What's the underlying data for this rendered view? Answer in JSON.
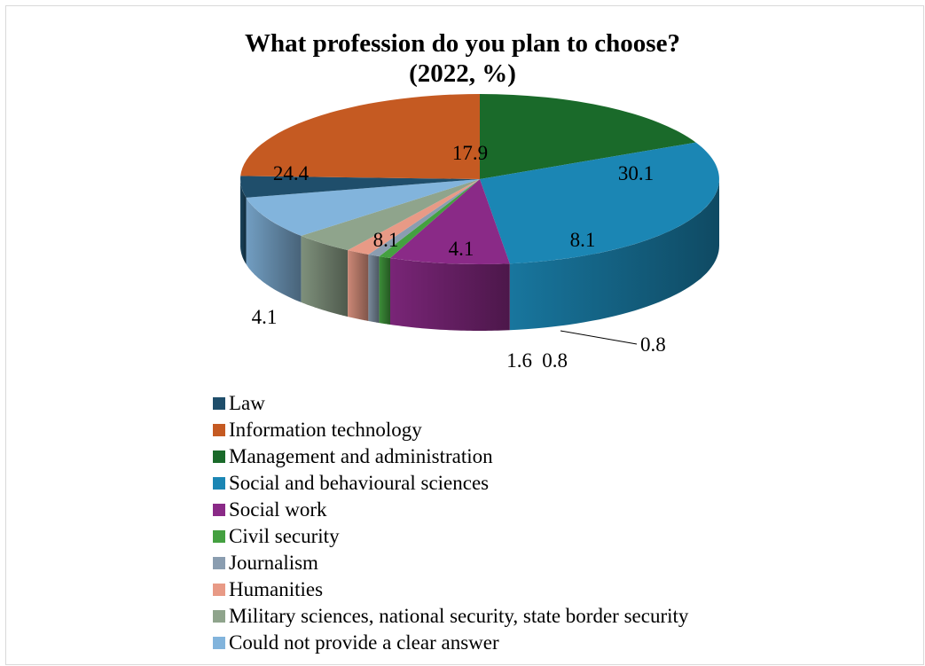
{
  "chart_data": {
    "type": "pie",
    "title_lines": [
      "What profession do you plan to choose?",
      "(2022, %)"
    ],
    "start_category": "Management and administration",
    "direction": "clockwise",
    "legend_position": "bottom",
    "slices": [
      {
        "label": "Law",
        "value": 4.1,
        "color": "#1f4e6b"
      },
      {
        "label": "Information technology",
        "value": 24.4,
        "color": "#c55a22"
      },
      {
        "label": "Management and administration",
        "value": 17.9,
        "color": "#1a6a2a"
      },
      {
        "label": "Social and behavioural sciences",
        "value": 30.1,
        "color": "#1b86b4"
      },
      {
        "label": "Social work",
        "value": 8.1,
        "color": "#8a2a87"
      },
      {
        "label": "Civil security",
        "value": 0.8,
        "color": "#44a040"
      },
      {
        "label": "Journalism",
        "value": 0.8,
        "color": "#8a9db0"
      },
      {
        "label": "Humanities",
        "value": 1.6,
        "color": "#e89a86"
      },
      {
        "label": "Military sciences, national security, state border security",
        "value": 4.1,
        "color": "#8fa48c"
      },
      {
        "label": "Could not provide a clear answer",
        "value": 8.1,
        "color": "#82b4dc"
      }
    ],
    "data_labels": [
      "4.1",
      "24.4",
      "17.9",
      "30.1",
      "8.1",
      "0.8",
      "0.8",
      "1.6",
      "4.1",
      "8.1"
    ]
  }
}
